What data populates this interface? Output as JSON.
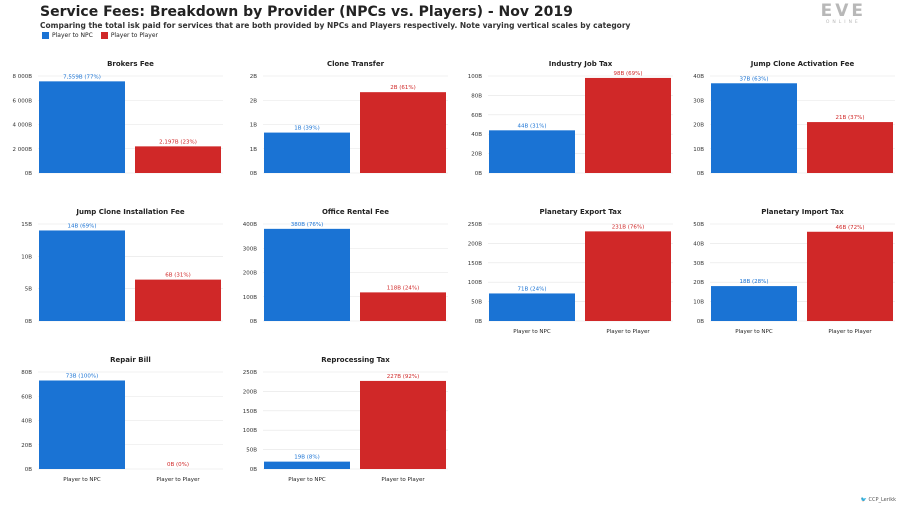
{
  "header": {
    "title": "Service Fees: Breakdown by Provider (NPCs vs. Players) - Nov 2019",
    "subtitle": "Comparing the total isk paid for services that are both provided by NPCs and Players respectively. Note varying vertical scales by category"
  },
  "legend": [
    {
      "label": "Player to NPC",
      "color": "#1a73d4"
    },
    {
      "label": "Player to Player",
      "color": "#d02828"
    }
  ],
  "logo": {
    "mark": "EVE",
    "sub": "ONLINE"
  },
  "credit": "CCP_Lerikk",
  "colors": {
    "npc": "#1a73d4",
    "player": "#d02828",
    "grid": "#e4e4e4"
  },
  "chart_data": [
    {
      "type": "bar",
      "title": "Brokers Fee",
      "categories": [
        "Player to NPC",
        "Player to Player"
      ],
      "values": [
        7559,
        2197
      ],
      "data_labels": [
        "7,559B (77%)",
        "2,197B (23%)"
      ],
      "ylim": [
        0,
        8000
      ],
      "yticks": [
        0,
        2000,
        4000,
        6000,
        8000
      ],
      "ytick_labels": [
        "0B",
        "2 000B",
        "4 000B",
        "6 000B",
        "8 000B"
      ],
      "show_categories": false,
      "grid": true
    },
    {
      "type": "bar",
      "title": "Clone Transfer",
      "categories": [
        "Player to NPC",
        "Player to Player"
      ],
      "values": [
        1,
        2
      ],
      "data_labels": [
        "1B (39%)",
        "2B (61%)"
      ],
      "ylim": [
        0,
        2.4
      ],
      "yticks": [
        0,
        0.6,
        1.2,
        1.8,
        2.4
      ],
      "ytick_labels": [
        "0B",
        "1B",
        "1B",
        "2B",
        "2B"
      ],
      "show_categories": false,
      "grid": true
    },
    {
      "type": "bar",
      "title": "Industry Job Tax",
      "categories": [
        "Player to NPC",
        "Player to Player"
      ],
      "values": [
        44,
        98
      ],
      "data_labels": [
        "44B (31%)",
        "98B (69%)"
      ],
      "ylim": [
        0,
        100
      ],
      "yticks": [
        0,
        20,
        40,
        60,
        80,
        100
      ],
      "ytick_labels": [
        "0B",
        "20B",
        "40B",
        "60B",
        "80B",
        "100B"
      ],
      "show_categories": false,
      "grid": true
    },
    {
      "type": "bar",
      "title": "Jump Clone Activation Fee",
      "categories": [
        "Player to NPC",
        "Player to Player"
      ],
      "values": [
        37,
        21
      ],
      "data_labels": [
        "37B (63%)",
        "21B (37%)"
      ],
      "ylim": [
        0,
        40
      ],
      "yticks": [
        0,
        10,
        20,
        30,
        40
      ],
      "ytick_labels": [
        "0B",
        "10B",
        "20B",
        "30B",
        "40B"
      ],
      "show_categories": false,
      "grid": true
    },
    {
      "type": "bar",
      "title": "Jump Clone Installation Fee",
      "categories": [
        "Player to NPC",
        "Player to Player"
      ],
      "values": [
        14,
        6.4
      ],
      "data_labels": [
        "14B (69%)",
        "6B (31%)"
      ],
      "ylim": [
        0,
        15
      ],
      "yticks": [
        0,
        5,
        10,
        15
      ],
      "ytick_labels": [
        "0B",
        "5B",
        "10B",
        "15B"
      ],
      "show_categories": false,
      "grid": true
    },
    {
      "type": "bar",
      "title": "Office Rental Fee",
      "categories": [
        "Player to NPC",
        "Player to Player"
      ],
      "values": [
        380,
        118
      ],
      "data_labels": [
        "380B (76%)",
        "118B (24%)"
      ],
      "ylim": [
        0,
        400
      ],
      "yticks": [
        0,
        100,
        200,
        300,
        400
      ],
      "ytick_labels": [
        "0B",
        "100B",
        "200B",
        "300B",
        "400B"
      ],
      "show_categories": false,
      "grid": true
    },
    {
      "type": "bar",
      "title": "Planetary Export Tax",
      "categories": [
        "Player to NPC",
        "Player to Player"
      ],
      "values": [
        71,
        231
      ],
      "data_labels": [
        "71B (24%)",
        "231B (76%)"
      ],
      "ylim": [
        0,
        250
      ],
      "yticks": [
        0,
        50,
        100,
        150,
        200,
        250
      ],
      "ytick_labels": [
        "0B",
        "50B",
        "100B",
        "150B",
        "200B",
        "250B"
      ],
      "show_categories": true,
      "grid": true
    },
    {
      "type": "bar",
      "title": "Planetary Import Tax",
      "categories": [
        "Player to NPC",
        "Player to Player"
      ],
      "values": [
        18,
        46
      ],
      "data_labels": [
        "18B (28%)",
        "46B (72%)"
      ],
      "ylim": [
        0,
        50
      ],
      "yticks": [
        0,
        10,
        20,
        30,
        40,
        50
      ],
      "ytick_labels": [
        "0B",
        "10B",
        "20B",
        "30B",
        "40B",
        "50B"
      ],
      "show_categories": true,
      "grid": true
    },
    {
      "type": "bar",
      "title": "Repair Bill",
      "categories": [
        "Player to NPC",
        "Player to Player"
      ],
      "values": [
        73,
        0
      ],
      "data_labels": [
        "73B (100%)",
        "0B (0%)"
      ],
      "ylim": [
        0,
        80
      ],
      "yticks": [
        0,
        20,
        40,
        60,
        80
      ],
      "ytick_labels": [
        "0B",
        "20B",
        "40B",
        "60B",
        "80B"
      ],
      "show_categories": true,
      "grid": true
    },
    {
      "type": "bar",
      "title": "Reprocessing Tax",
      "categories": [
        "Player to NPC",
        "Player to Player"
      ],
      "values": [
        19,
        227
      ],
      "data_labels": [
        "19B (8%)",
        "227B (92%)"
      ],
      "ylim": [
        0,
        250
      ],
      "yticks": [
        0,
        50,
        100,
        150,
        200,
        250
      ],
      "ytick_labels": [
        "0B",
        "50B",
        "100B",
        "150B",
        "200B",
        "250B"
      ],
      "show_categories": true,
      "grid": true
    }
  ]
}
